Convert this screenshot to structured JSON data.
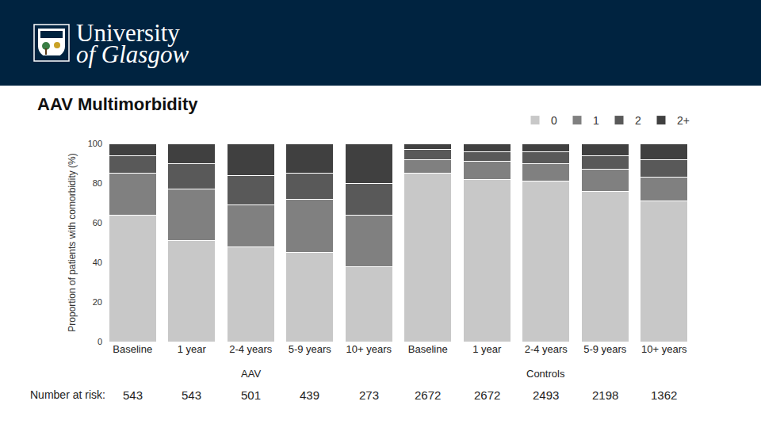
{
  "header": {
    "line1": "University",
    "line2": "of Glasgow"
  },
  "chart_data": {
    "type": "bar",
    "stacked": true,
    "title": "AAV Multimorbidity",
    "y_label": "Proportion of patients with comorbidity (%)",
    "categories": [
      "Baseline",
      "1 year",
      "2-4 years",
      "5-9 years",
      "10+ years",
      "Baseline",
      "1 year",
      "2-4 years",
      "5-9 years",
      "10+ years"
    ],
    "groups": [
      "AAV",
      "AAV",
      "AAV",
      "AAV",
      "AAV",
      "Controls",
      "Controls",
      "Controls",
      "Controls",
      "Controls"
    ],
    "series": [
      {
        "name": "0",
        "color": "#c8c8c8",
        "values": [
          64,
          51,
          48,
          45,
          38,
          85,
          82,
          81,
          76,
          71
        ]
      },
      {
        "name": "1",
        "color": "#808080",
        "values": [
          21,
          26,
          21,
          27,
          26,
          7,
          9,
          9,
          11,
          12
        ]
      },
      {
        "name": "2",
        "color": "#595959",
        "values": [
          9,
          13,
          15,
          13,
          16,
          5,
          5,
          6,
          7,
          9
        ]
      },
      {
        "name": "2+",
        "color": "#404040",
        "values": [
          6,
          10,
          16,
          15,
          20,
          3,
          4,
          4,
          6,
          8
        ]
      }
    ],
    "ylim": [
      0,
      100
    ],
    "yticks": [
      0,
      20,
      40,
      60,
      80,
      100
    ],
    "grid": false,
    "legend": "top right",
    "number_at_risk": {
      "label": "Number at risk:",
      "values": [
        543,
        543,
        501,
        439,
        273,
        2672,
        2672,
        2493,
        2198,
        1362
      ]
    }
  }
}
